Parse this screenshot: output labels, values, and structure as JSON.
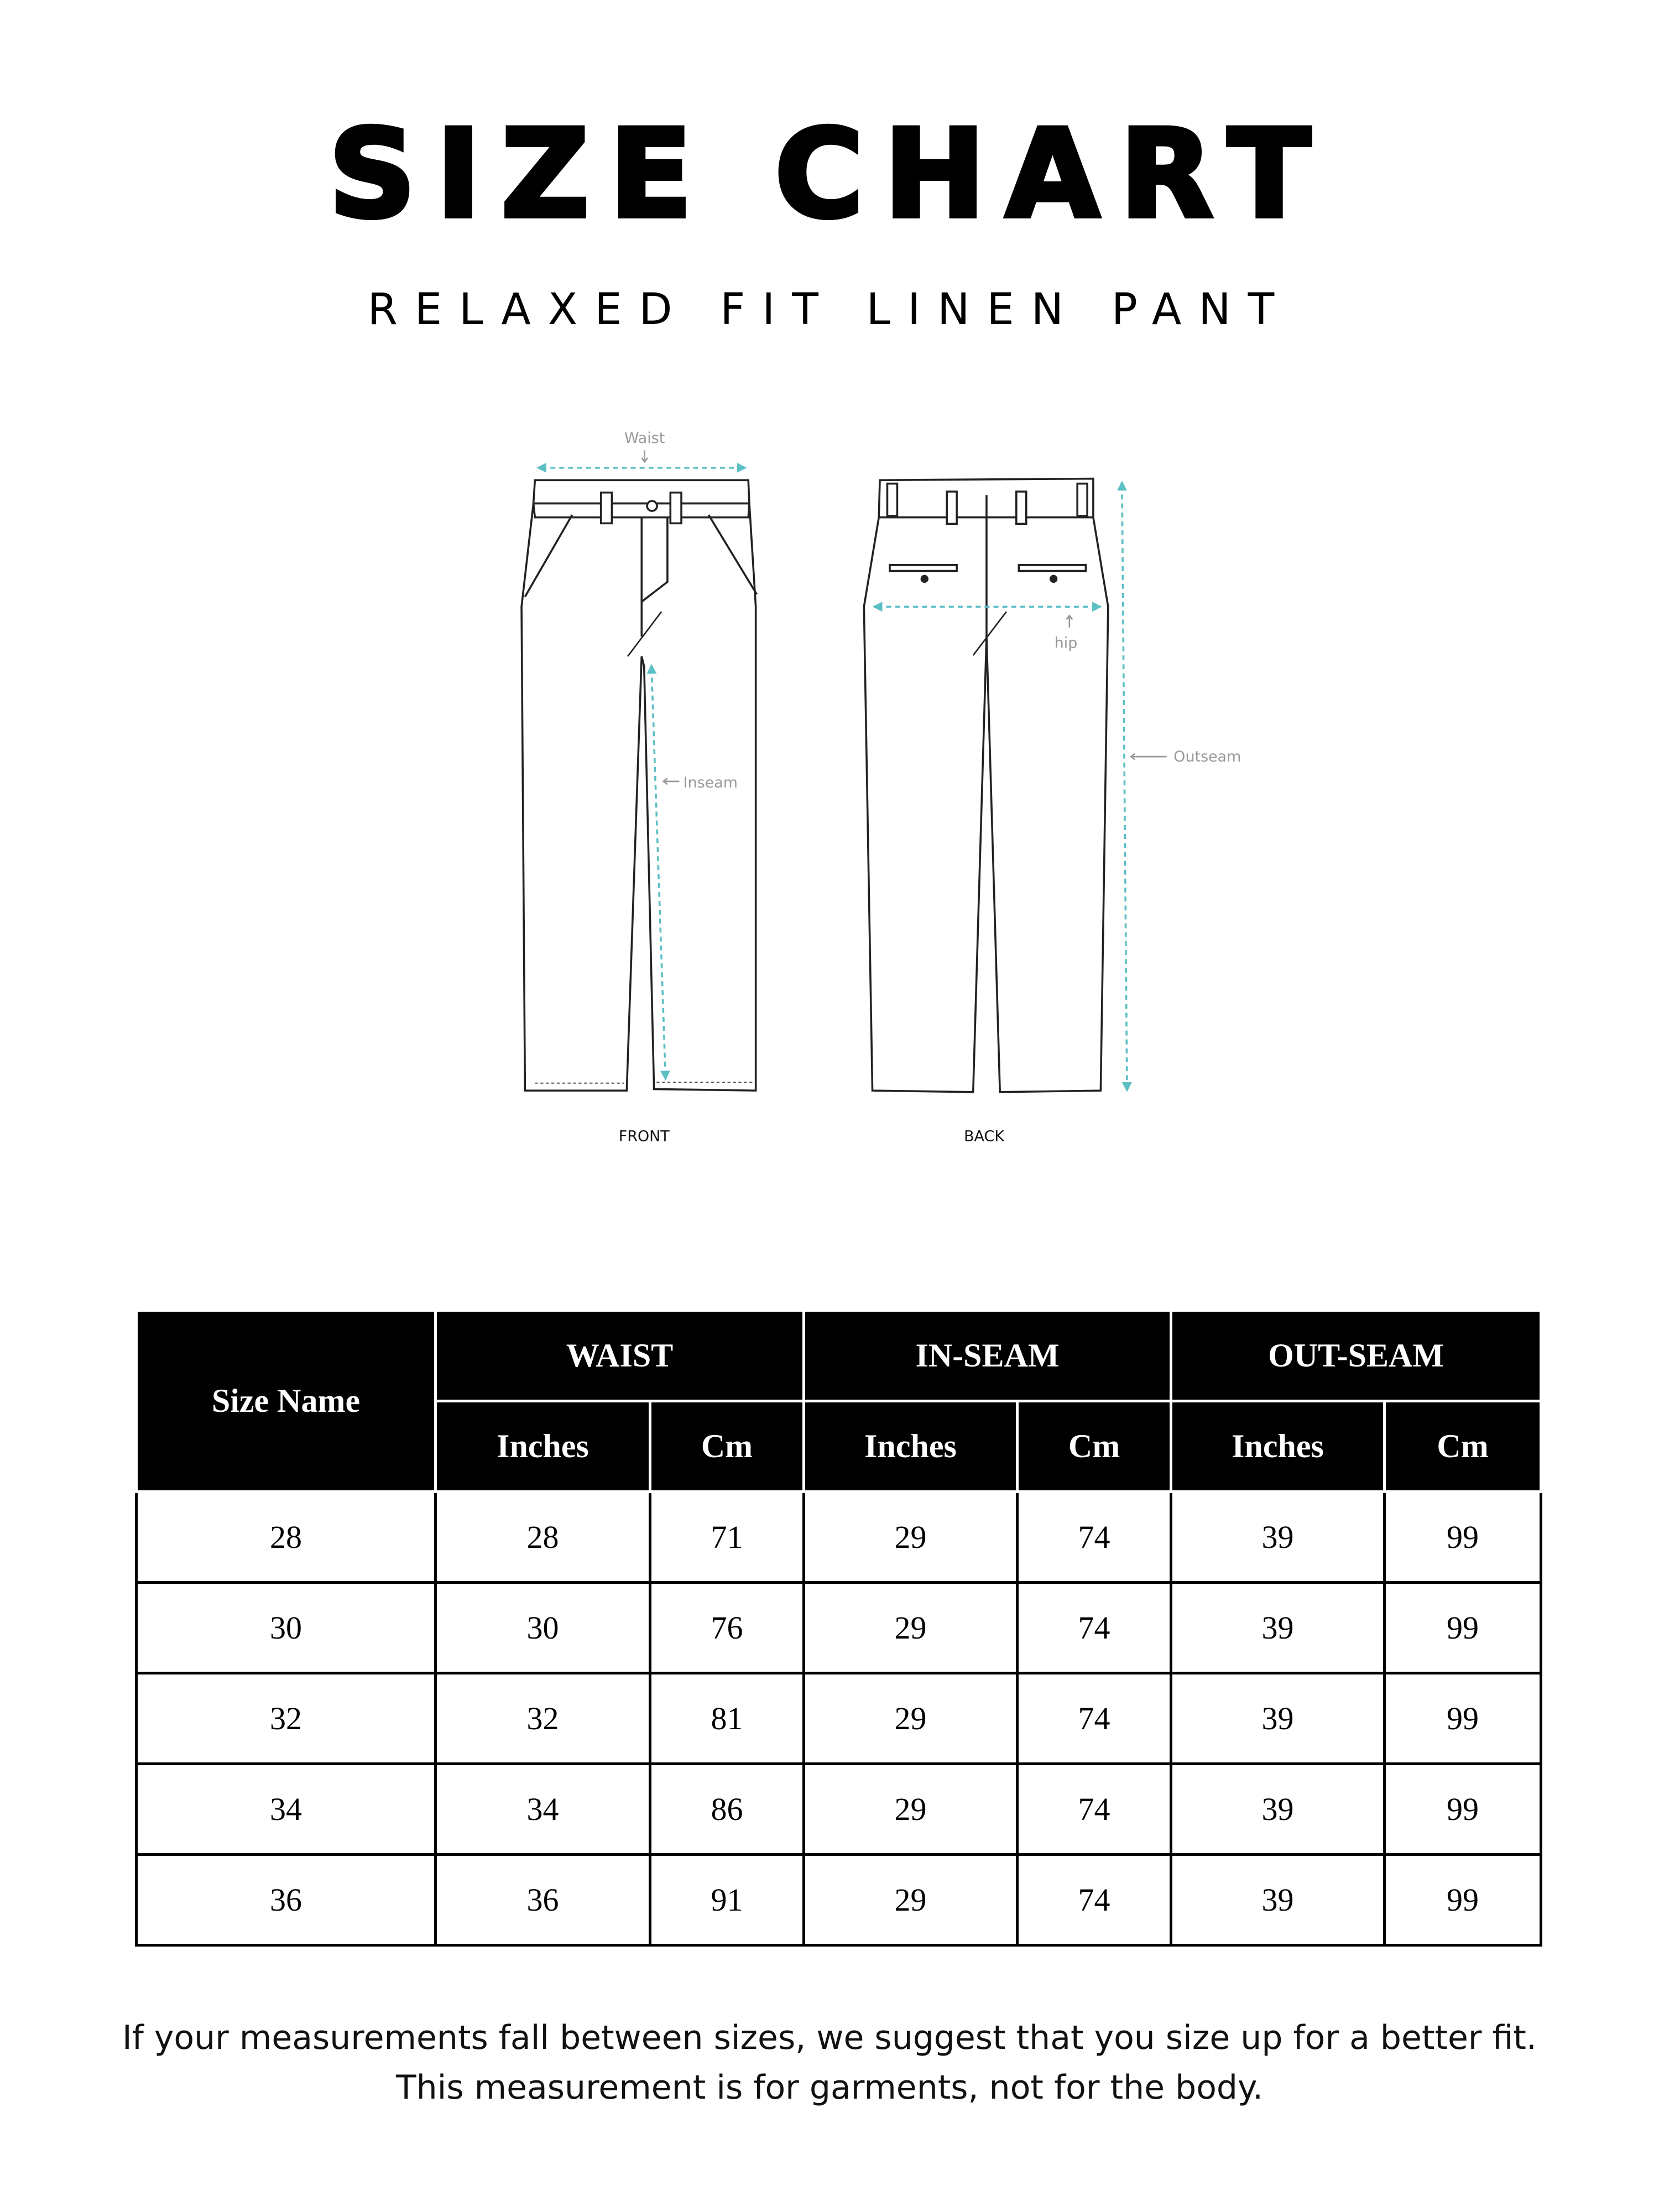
{
  "header": {
    "title": "SIZE CHART",
    "subtitle": "RELAXED FIT LINEN PANT"
  },
  "diagram": {
    "labels": {
      "waist": "Waist",
      "inseam": "Inseam",
      "hip": "hip",
      "outseam": "Outseam",
      "front": "FRONT",
      "back": "BACK"
    },
    "arrow_color": "#5bbfc4",
    "label_color": "#999999"
  },
  "table": {
    "size_header": "Size Name",
    "groups": [
      "WAIST",
      "IN-SEAM",
      "OUT-SEAM"
    ],
    "units": [
      "Inches",
      "Cm",
      "Inches",
      "Cm",
      "Inches",
      "Cm"
    ],
    "rows": [
      [
        "28",
        "28",
        "71",
        "29",
        "74",
        "39",
        "99"
      ],
      [
        "30",
        "30",
        "76",
        "29",
        "74",
        "39",
        "99"
      ],
      [
        "32",
        "32",
        "81",
        "29",
        "74",
        "39",
        "99"
      ],
      [
        "34",
        "34",
        "86",
        "29",
        "74",
        "39",
        "99"
      ],
      [
        "36",
        "36",
        "91",
        "29",
        "74",
        "39",
        "99"
      ]
    ]
  },
  "footer": {
    "line1": "If your measurements fall between sizes, we suggest that you size up for a better fit.",
    "line2": "This measurement is for garments, not for the body."
  }
}
